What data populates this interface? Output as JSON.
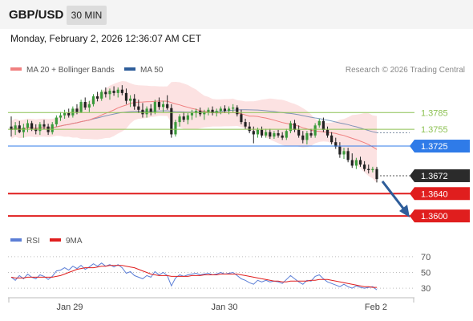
{
  "header": {
    "symbol": "GBP/USD",
    "interval": "30 MIN"
  },
  "timestamp": "Monday, February 2, 2026 12:36:07 AM CET",
  "legend": {
    "ma20_label": "MA 20 + Bollinger Bands",
    "ma50_label": "MA 50",
    "source": "Research © 2026 Trading Central",
    "colors": {
      "ma20": "#f08080",
      "ma50": "#2e5d9a",
      "bands": "#fbd8d8"
    }
  },
  "chart_data": [
    {
      "type": "candlestick",
      "x_tick_labels": [
        "Jan 29",
        "Jan 30",
        "Feb 2"
      ],
      "ylim": [
        1.357,
        1.385
      ],
      "last_price": {
        "label": "1.3672",
        "value": 1.3672
      },
      "levels": [
        {
          "label": "1.3785",
          "value": 1.3785,
          "kind": "resistance",
          "color": "#8cc152",
          "marker": "text"
        },
        {
          "label": "1.3755",
          "value": 1.3755,
          "kind": "resistance",
          "color": "#8cc152",
          "marker": "text"
        },
        {
          "label": "1.3725",
          "value": 1.3725,
          "kind": "pivot",
          "color": "#2f7be8",
          "marker": "box"
        },
        {
          "label": "1.3640",
          "value": 1.364,
          "kind": "support",
          "color": "#e01e1e",
          "marker": "box"
        },
        {
          "label": "1.3600",
          "value": 1.36,
          "kind": "support",
          "color": "#e01e1e",
          "marker": "box"
        }
      ],
      "trend_arrow": {
        "from": 1.3662,
        "to": 1.3603,
        "direction": "down",
        "color": "#2e5d9a"
      },
      "ohlc": [
        [
          1.376,
          1.3778,
          1.3742,
          1.3754
        ],
        [
          1.3754,
          1.3768,
          1.3745,
          1.3762
        ],
        [
          1.3762,
          1.377,
          1.3748,
          1.375
        ],
        [
          1.375,
          1.3765,
          1.374,
          1.3758
        ],
        [
          1.3758,
          1.3772,
          1.375,
          1.3766
        ],
        [
          1.3766,
          1.377,
          1.3752,
          1.3756
        ],
        [
          1.3756,
          1.3764,
          1.3746,
          1.3752
        ],
        [
          1.3752,
          1.3768,
          1.3745,
          1.3764
        ],
        [
          1.3764,
          1.3772,
          1.3755,
          1.376
        ],
        [
          1.376,
          1.3765,
          1.3745,
          1.375
        ],
        [
          1.375,
          1.3768,
          1.3746,
          1.3764
        ],
        [
          1.3764,
          1.378,
          1.376,
          1.3776
        ],
        [
          1.3776,
          1.3786,
          1.377,
          1.378
        ],
        [
          1.378,
          1.379,
          1.3774,
          1.3784
        ],
        [
          1.3784,
          1.3792,
          1.3776,
          1.378
        ],
        [
          1.378,
          1.3796,
          1.3776,
          1.3792
        ],
        [
          1.3792,
          1.38,
          1.3782,
          1.3786
        ],
        [
          1.3786,
          1.3808,
          1.3784,
          1.3804
        ],
        [
          1.3804,
          1.3812,
          1.379,
          1.3794
        ],
        [
          1.3794,
          1.3806,
          1.3786,
          1.38
        ],
        [
          1.38,
          1.3818,
          1.3796,
          1.3814
        ],
        [
          1.3814,
          1.3822,
          1.3805,
          1.381
        ],
        [
          1.381,
          1.3826,
          1.3806,
          1.3822
        ],
        [
          1.3822,
          1.383,
          1.3812,
          1.3818
        ],
        [
          1.3818,
          1.3828,
          1.3808,
          1.3824
        ],
        [
          1.3824,
          1.3832,
          1.3815,
          1.382
        ],
        [
          1.382,
          1.383,
          1.3812,
          1.3826
        ],
        [
          1.3826,
          1.3834,
          1.3816,
          1.382
        ],
        [
          1.382,
          1.3828,
          1.38,
          1.3806
        ],
        [
          1.3806,
          1.3816,
          1.3795,
          1.381
        ],
        [
          1.381,
          1.3818,
          1.379,
          1.3796
        ],
        [
          1.3796,
          1.3808,
          1.3784,
          1.379
        ],
        [
          1.379,
          1.3802,
          1.3776,
          1.3782
        ],
        [
          1.3782,
          1.3796,
          1.3776,
          1.3792
        ],
        [
          1.3792,
          1.38,
          1.378,
          1.3786
        ],
        [
          1.3786,
          1.3808,
          1.3782,
          1.3804
        ],
        [
          1.3804,
          1.3812,
          1.379,
          1.3795
        ],
        [
          1.3795,
          1.3806,
          1.3786,
          1.38
        ],
        [
          1.38,
          1.3816,
          1.379,
          1.3793
        ],
        [
          1.3793,
          1.38,
          1.374,
          1.3746
        ],
        [
          1.3746,
          1.3772,
          1.3742,
          1.3768
        ],
        [
          1.3768,
          1.3782,
          1.376,
          1.3778
        ],
        [
          1.3778,
          1.3786,
          1.3768,
          1.3772
        ],
        [
          1.3772,
          1.3784,
          1.3764,
          1.378
        ],
        [
          1.378,
          1.379,
          1.3772,
          1.3784
        ],
        [
          1.3784,
          1.3792,
          1.3776,
          1.3788
        ],
        [
          1.3788,
          1.3794,
          1.3778,
          1.3782
        ],
        [
          1.3782,
          1.379,
          1.3772,
          1.3786
        ],
        [
          1.3786,
          1.3794,
          1.378,
          1.379
        ],
        [
          1.379,
          1.3796,
          1.378,
          1.3784
        ],
        [
          1.3784,
          1.3792,
          1.3778,
          1.3788
        ],
        [
          1.3788,
          1.3796,
          1.3782,
          1.3792
        ],
        [
          1.3792,
          1.3798,
          1.3784,
          1.3788
        ],
        [
          1.3788,
          1.3796,
          1.3782,
          1.3792
        ],
        [
          1.3792,
          1.38,
          1.3786,
          1.3794
        ],
        [
          1.3794,
          1.3798,
          1.3778,
          1.3782
        ],
        [
          1.3782,
          1.379,
          1.3764,
          1.3768
        ],
        [
          1.3768,
          1.3774,
          1.3756,
          1.376
        ],
        [
          1.376,
          1.3768,
          1.3748,
          1.3752
        ],
        [
          1.3752,
          1.376,
          1.373,
          1.3746
        ],
        [
          1.3746,
          1.3758,
          1.374,
          1.3754
        ],
        [
          1.3754,
          1.376,
          1.374,
          1.3744
        ],
        [
          1.3744,
          1.3756,
          1.374,
          1.375
        ],
        [
          1.375,
          1.3756,
          1.3738,
          1.3742
        ],
        [
          1.3742,
          1.3752,
          1.3738,
          1.3748
        ],
        [
          1.3748,
          1.3754,
          1.374,
          1.3744
        ],
        [
          1.3744,
          1.375,
          1.3736,
          1.374
        ],
        [
          1.374,
          1.3756,
          1.3736,
          1.3752
        ],
        [
          1.3752,
          1.377,
          1.3748,
          1.3766
        ],
        [
          1.3766,
          1.3772,
          1.375,
          1.3754
        ],
        [
          1.3754,
          1.3762,
          1.374,
          1.3744
        ],
        [
          1.3744,
          1.3752,
          1.373,
          1.3736
        ],
        [
          1.3736,
          1.3752,
          1.3728,
          1.3748
        ],
        [
          1.3748,
          1.3756,
          1.374,
          1.3744
        ],
        [
          1.3744,
          1.3766,
          1.374,
          1.3762
        ],
        [
          1.3762,
          1.3774,
          1.3758,
          1.377
        ],
        [
          1.377,
          1.3776,
          1.375,
          1.3754
        ],
        [
          1.3754,
          1.376,
          1.374,
          1.3744
        ],
        [
          1.3744,
          1.375,
          1.3728,
          1.3732
        ],
        [
          1.3732,
          1.374,
          1.372,
          1.3724
        ],
        [
          1.3724,
          1.3732,
          1.3704,
          1.371
        ],
        [
          1.371,
          1.3722,
          1.3702,
          1.3716
        ],
        [
          1.3716,
          1.3722,
          1.3696,
          1.37
        ],
        [
          1.37,
          1.3712,
          1.3686,
          1.369
        ],
        [
          1.369,
          1.3704,
          1.3684,
          1.37
        ],
        [
          1.37,
          1.3706,
          1.3688,
          1.3692
        ],
        [
          1.3692,
          1.3698,
          1.368,
          1.3684
        ],
        [
          1.3684,
          1.3692,
          1.3676,
          1.3682
        ],
        [
          1.3682,
          1.3688,
          1.3678,
          1.3684
        ],
        [
          1.3684,
          1.3688,
          1.366,
          1.3666
        ]
      ]
    },
    {
      "type": "line",
      "name": "RSI panel",
      "ylim": [
        24,
        74
      ],
      "y_ticks": [
        70,
        50,
        30
      ],
      "legend": [
        {
          "label": "RSI",
          "color": "#5b7ed6"
        },
        {
          "label": "9MA",
          "color": "#e01e1e"
        }
      ],
      "series": [
        {
          "name": "RSI",
          "values": [
            44,
            40,
            46,
            42,
            48,
            44,
            42,
            47,
            45,
            41,
            45,
            52,
            53,
            56,
            53,
            58,
            55,
            59,
            54,
            57,
            61,
            58,
            62,
            58,
            60,
            57,
            60,
            56,
            49,
            51,
            46,
            44,
            42,
            46,
            44,
            51,
            47,
            50,
            46,
            33,
            43,
            47,
            45,
            47,
            48,
            49,
            47,
            48,
            49,
            47,
            48,
            50,
            48,
            49,
            50,
            46,
            42,
            40,
            37,
            35,
            40,
            38,
            40,
            38,
            39,
            38,
            36,
            41,
            46,
            42,
            38,
            35,
            40,
            39,
            45,
            47,
            42,
            38,
            36,
            34,
            32,
            35,
            32,
            30,
            33,
            31,
            30,
            31,
            32,
            28
          ]
        },
        {
          "name": "9MA",
          "values": [
            44,
            43,
            43,
            43,
            44,
            44,
            44,
            44,
            44,
            44,
            44,
            45,
            46,
            48,
            50,
            52,
            54,
            55,
            56,
            56,
            56,
            57,
            58,
            58,
            59,
            59,
            59,
            59,
            58,
            57,
            56,
            54,
            52,
            50,
            48,
            47,
            46,
            46,
            46,
            45,
            45,
            45,
            45,
            45,
            46,
            46,
            46,
            47,
            47,
            47,
            47,
            48,
            48,
            48,
            48,
            48,
            47,
            46,
            45,
            44,
            43,
            42,
            41,
            40,
            39,
            39,
            38,
            38,
            39,
            39,
            39,
            39,
            39,
            40,
            40,
            41,
            41,
            41,
            40,
            39,
            38,
            37,
            36,
            35,
            34,
            33,
            32,
            32,
            31,
            31
          ]
        }
      ]
    }
  ]
}
